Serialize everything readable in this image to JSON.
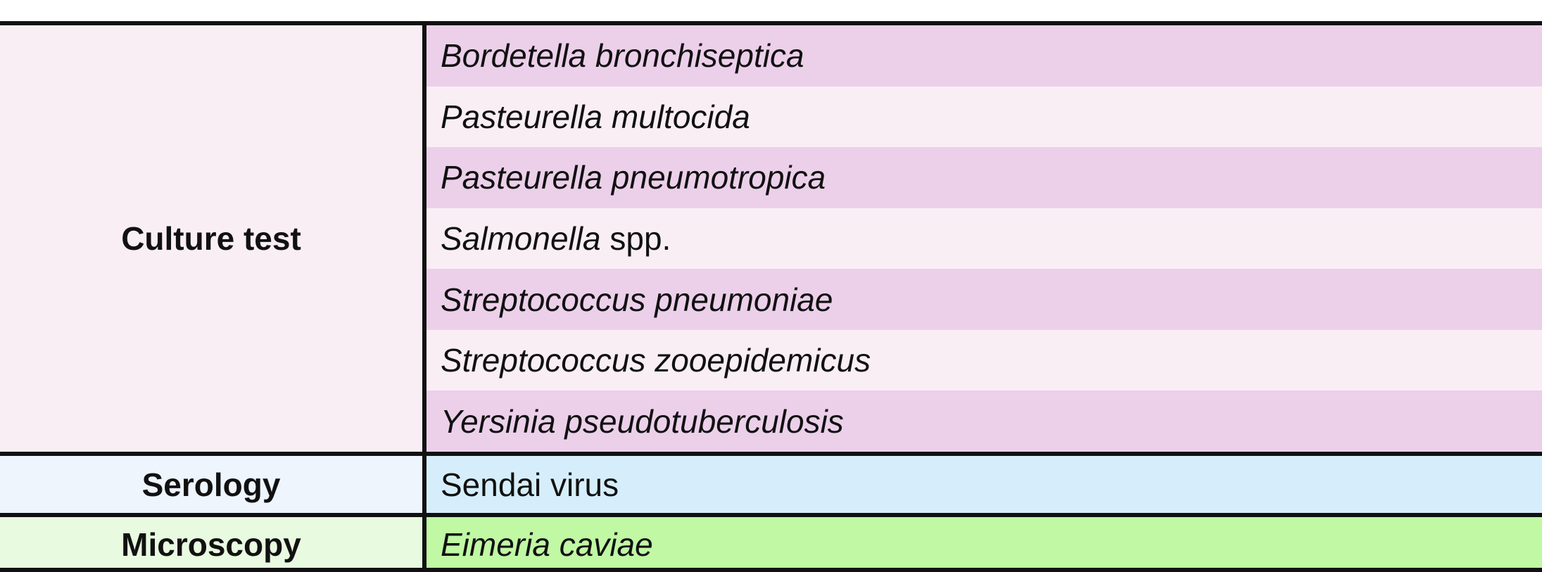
{
  "groups": {
    "culture": {
      "label": "Culture test",
      "items": [
        {
          "italic": "Bordetella bronchiseptica",
          "plain": ""
        },
        {
          "italic": "Pasteurella multocida",
          "plain": ""
        },
        {
          "italic": "Pasteurella pneumotropica",
          "plain": ""
        },
        {
          "italic": "Salmonella",
          "plain": " spp."
        },
        {
          "italic": "Streptococcus pneumoniae",
          "plain": ""
        },
        {
          "italic": "Streptococcus zooepidemicus",
          "plain": ""
        },
        {
          "italic": "Yersinia pseudotuberculosis",
          "plain": ""
        }
      ]
    },
    "serology": {
      "label": "Serology",
      "items": [
        {
          "italic": "",
          "plain": "Sendai virus"
        }
      ]
    },
    "microscopy": {
      "label": "Microscopy",
      "items": [
        {
          "italic": "Eimeria caviae",
          "plain": ""
        }
      ]
    }
  }
}
